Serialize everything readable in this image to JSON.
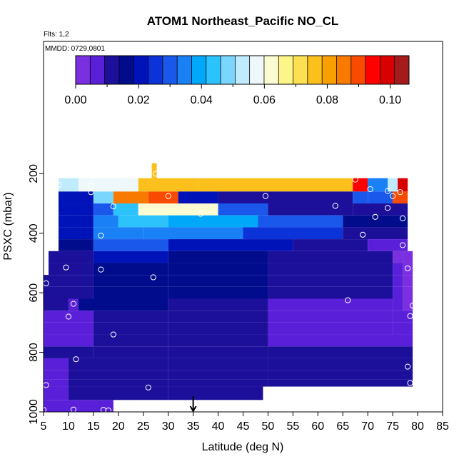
{
  "chart_data": {
    "type": "heatmap",
    "title": "ATOM1 Northeast_Pacific NO_CL",
    "flights_text": "Flts: 1,2",
    "mmdd_text": "MMDD: 0729,0801",
    "xlabel": "Latitude (deg N)",
    "ylabel": "PSXC (mbar)",
    "xlim": [
      5,
      85
    ],
    "ylim": [
      1000,
      30
    ],
    "x_ticks": [
      "5",
      "10",
      "15",
      "20",
      "25",
      "30",
      "35",
      "40",
      "45",
      "50",
      "55",
      "60",
      "65",
      "70",
      "75",
      "80",
      "85"
    ],
    "y_ticks": [
      "200",
      "400",
      "600",
      "800",
      "1000"
    ],
    "colorbar": {
      "min": 0.0,
      "max": 0.106,
      "tick_labels": [
        "0.00",
        "0.02",
        "0.04",
        "0.06",
        "0.08",
        "0.10"
      ],
      "colors": [
        "#7a2fe0",
        "#5a1fd8",
        "#1c0f9a",
        "#000c8c",
        "#0013b8",
        "#0b33d8",
        "#1a58ec",
        "#1a80f6",
        "#00a8fa",
        "#2cc2fc",
        "#7ad6fd",
        "#c0ebfd",
        "#eef8fb",
        "#fcfcd2",
        "#fbf58a",
        "#fde052",
        "#fbc01c",
        "#f8a000",
        "#f87a00",
        "#f84a00",
        "#ff0000",
        "#d80000",
        "#a51a1a"
      ]
    },
    "marker": {
      "latitude": 35,
      "direction": "down"
    },
    "rows": [
      {
        "p": [
          215,
          260
        ],
        "cells": [
          [
            8,
            12,
            0.055
          ],
          [
            12,
            24,
            0.058
          ],
          [
            24,
            36,
            0.075
          ],
          [
            36,
            67,
            0.076
          ],
          [
            67,
            70,
            0.095
          ],
          [
            70,
            74,
            0.035
          ],
          [
            74,
            76,
            0.055
          ],
          [
            76,
            78,
            0.1
          ]
        ]
      },
      {
        "p": [
          260,
          300
        ],
        "cells": [
          [
            8,
            15,
            0.02
          ],
          [
            15,
            19,
            0.048
          ],
          [
            19,
            26,
            0.085
          ],
          [
            26,
            32,
            0.088
          ],
          [
            32,
            40,
            0.022
          ],
          [
            40,
            67,
            0.012
          ],
          [
            67,
            70,
            0.03
          ],
          [
            70,
            75,
            0.028
          ],
          [
            75,
            78,
            0.09
          ]
        ]
      },
      {
        "p": [
          300,
          340
        ],
        "cells": [
          [
            8,
            15,
            0.02
          ],
          [
            15,
            19,
            0.032
          ],
          [
            19,
            24,
            0.045
          ],
          [
            24,
            40,
            0.062
          ],
          [
            40,
            50,
            0.028
          ],
          [
            50,
            67,
            0.012
          ],
          [
            67,
            78,
            0.01
          ]
        ]
      },
      {
        "p": [
          340,
          380
        ],
        "cells": [
          [
            8,
            15,
            0.022
          ],
          [
            15,
            20,
            0.035
          ],
          [
            20,
            30,
            0.042
          ],
          [
            30,
            48,
            0.04
          ],
          [
            48,
            65,
            0.028
          ],
          [
            65,
            78,
            0.015
          ]
        ]
      },
      {
        "p": [
          380,
          420
        ],
        "cells": [
          [
            8,
            15,
            0.022
          ],
          [
            15,
            25,
            0.035
          ],
          [
            25,
            45,
            0.036
          ],
          [
            45,
            65,
            0.025
          ],
          [
            65,
            78,
            0.01
          ]
        ]
      },
      {
        "p": [
          420,
          460
        ],
        "cells": [
          [
            8,
            15,
            0.018
          ],
          [
            15,
            30,
            0.028
          ],
          [
            30,
            55,
            0.022
          ],
          [
            55,
            70,
            0.012
          ],
          [
            70,
            78,
            0.008
          ]
        ]
      },
      {
        "p": [
          460,
          500
        ],
        "cells": [
          [
            6,
            15,
            0.012
          ],
          [
            15,
            30,
            0.02
          ],
          [
            30,
            50,
            0.018
          ],
          [
            50,
            75,
            0.01
          ],
          [
            75,
            77,
            0.004
          ],
          [
            77,
            79,
            0.002
          ]
        ]
      },
      {
        "p": [
          500,
          540
        ],
        "cells": [
          [
            6,
            15,
            0.01
          ],
          [
            15,
            30,
            0.018
          ],
          [
            30,
            50,
            0.016
          ],
          [
            50,
            75,
            0.012
          ],
          [
            75,
            77,
            0.005
          ],
          [
            77,
            79,
            0.002
          ]
        ]
      },
      {
        "p": [
          540,
          580
        ],
        "cells": [
          [
            5,
            15,
            0.01
          ],
          [
            15,
            30,
            0.015
          ],
          [
            30,
            50,
            0.014
          ],
          [
            50,
            75,
            0.01
          ],
          [
            75,
            77,
            0.006
          ],
          [
            77,
            79,
            0.003
          ]
        ]
      },
      {
        "p": [
          580,
          620
        ],
        "cells": [
          [
            5,
            15,
            0.012
          ],
          [
            15,
            30,
            0.016
          ],
          [
            30,
            50,
            0.015
          ],
          [
            50,
            75,
            0.01
          ],
          [
            75,
            77,
            0.006
          ],
          [
            77,
            79,
            0.004
          ]
        ]
      },
      {
        "p": [
          620,
          660
        ],
        "cells": [
          [
            5,
            10,
            0.01
          ],
          [
            10,
            12,
            0.006
          ],
          [
            12,
            30,
            0.014
          ],
          [
            30,
            50,
            0.012
          ],
          [
            50,
            75,
            0.008
          ],
          [
            75,
            77,
            0.005
          ],
          [
            77,
            79,
            0.002
          ]
        ]
      },
      {
        "p": [
          660,
          700
        ],
        "cells": [
          [
            5,
            15,
            0.009
          ],
          [
            15,
            30,
            0.012
          ],
          [
            30,
            50,
            0.01
          ],
          [
            50,
            75,
            0.008
          ],
          [
            75,
            79,
            0.005
          ]
        ]
      },
      {
        "p": [
          700,
          740
        ],
        "cells": [
          [
            5,
            15,
            0.009
          ],
          [
            15,
            30,
            0.011
          ],
          [
            30,
            50,
            0.01
          ],
          [
            50,
            75,
            0.008
          ],
          [
            75,
            79,
            0.008
          ]
        ]
      },
      {
        "p": [
          740,
          780
        ],
        "cells": [
          [
            5,
            15,
            0.009
          ],
          [
            15,
            30,
            0.011
          ],
          [
            30,
            50,
            0.01
          ],
          [
            50,
            79,
            0.009
          ]
        ]
      },
      {
        "p": [
          780,
          820
        ],
        "cells": [
          [
            5,
            15,
            0.01
          ],
          [
            15,
            30,
            0.012
          ],
          [
            30,
            50,
            0.01
          ],
          [
            50,
            79,
            0.01
          ]
        ]
      },
      {
        "p": [
          820,
          860
        ],
        "cells": [
          [
            5,
            10,
            0.007
          ],
          [
            10,
            30,
            0.01
          ],
          [
            30,
            50,
            0.01
          ],
          [
            50,
            79,
            0.01
          ]
        ]
      },
      {
        "p": [
          860,
          890
        ],
        "cells": [
          [
            5,
            10,
            0.006
          ],
          [
            10,
            30,
            0.01
          ],
          [
            30,
            50,
            0.01
          ],
          [
            50,
            79,
            0.01
          ]
        ]
      },
      {
        "p": [
          890,
          915
        ],
        "cells": [
          [
            5,
            10,
            0.007
          ],
          [
            10,
            30,
            0.011
          ],
          [
            30,
            50,
            0.01
          ],
          [
            50,
            79,
            0.01
          ]
        ]
      },
      {
        "p": [
          915,
          960
        ],
        "cells": [
          [
            5,
            10,
            0.008
          ],
          [
            10,
            30,
            0.01
          ],
          [
            30,
            49,
            0.01
          ]
        ]
      },
      {
        "p": [
          960,
          1000
        ],
        "cells": [
          [
            5,
            12,
            0.006
          ],
          [
            12,
            19,
            0.005
          ]
        ]
      },
      {
        "p": [
          165,
          215
        ],
        "cells": [
          [
            26.7,
            27.7,
            0.078
          ]
        ]
      }
    ],
    "points": [
      [
        8,
        237
      ],
      [
        14.5,
        240
      ],
      [
        27.5,
        200
      ],
      [
        67.5,
        220
      ],
      [
        70.5,
        252
      ],
      [
        74,
        258
      ],
      [
        76.5,
        262
      ],
      [
        14.5,
        262
      ],
      [
        30,
        275
      ],
      [
        49.5,
        275
      ],
      [
        75,
        275
      ],
      [
        19,
        310
      ],
      [
        36.5,
        335
      ],
      [
        63.5,
        308
      ],
      [
        74,
        315
      ],
      [
        71.5,
        345
      ],
      [
        77,
        350
      ],
      [
        16.5,
        408
      ],
      [
        69,
        405
      ],
      [
        77,
        440
      ],
      [
        9.5,
        515
      ],
      [
        16.5,
        522
      ],
      [
        27,
        548
      ],
      [
        78,
        518
      ],
      [
        5.5,
        568
      ],
      [
        11,
        637
      ],
      [
        66,
        625
      ],
      [
        79,
        643
      ],
      [
        10,
        680
      ],
      [
        78.5,
        678
      ],
      [
        19,
        740
      ],
      [
        11.5,
        823
      ],
      [
        78,
        848
      ],
      [
        78.5,
        903
      ],
      [
        5.5,
        910
      ],
      [
        26,
        918
      ],
      [
        5,
        993
      ],
      [
        11,
        992
      ],
      [
        17,
        993
      ],
      [
        18,
        995
      ]
    ]
  }
}
